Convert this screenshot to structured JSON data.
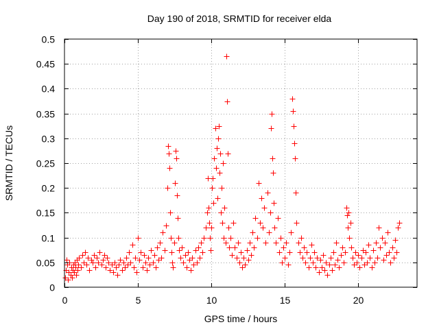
{
  "chart_data": {
    "type": "scatter",
    "title": "Day 190 of 2018, SRMTID for receiver elda",
    "xlabel": "GPS time / hours",
    "ylabel": "SRMTID / TECUs",
    "xlim": [
      0,
      24
    ],
    "ylim": [
      0,
      0.5
    ],
    "x_ticks": [
      0,
      5,
      10,
      15,
      20
    ],
    "x_tick_labels": [
      "0",
      "5",
      "10",
      "15",
      "20"
    ],
    "y_ticks": [
      0,
      0.05,
      0.1,
      0.15,
      0.2,
      0.25,
      0.3,
      0.35,
      0.4,
      0.45,
      0.5
    ],
    "y_tick_labels": [
      "0",
      "0.05",
      "0.1",
      "0.15",
      "0.2",
      "0.25",
      "0.3",
      "0.35",
      "0.4",
      "0.45",
      "0.5"
    ],
    "grid": true,
    "marker": "+",
    "color": "#ff0000",
    "series": [
      {
        "name": "SRMTID",
        "points": [
          [
            0.05,
            0.02
          ],
          [
            0.1,
            0.035
          ],
          [
            0.15,
            0.055
          ],
          [
            0.2,
            0.045
          ],
          [
            0.25,
            0.015
          ],
          [
            0.3,
            0.03
          ],
          [
            0.35,
            0.05
          ],
          [
            0.4,
            0.025
          ],
          [
            0.45,
            0.04
          ],
          [
            0.5,
            0.02
          ],
          [
            0.55,
            0.035
          ],
          [
            0.6,
            0.045
          ],
          [
            0.65,
            0.03
          ],
          [
            0.7,
            0.05
          ],
          [
            0.75,
            0.04
          ],
          [
            0.8,
            0.025
          ],
          [
            0.85,
            0.055
          ],
          [
            0.9,
            0.035
          ],
          [
            0.95,
            0.045
          ],
          [
            1.0,
            0.06
          ],
          [
            1.1,
            0.04
          ],
          [
            1.2,
            0.065
          ],
          [
            1.3,
            0.05
          ],
          [
            1.4,
            0.07
          ],
          [
            1.5,
            0.045
          ],
          [
            1.6,
            0.06
          ],
          [
            1.7,
            0.035
          ],
          [
            1.8,
            0.055
          ],
          [
            1.9,
            0.05
          ],
          [
            2.0,
            0.065
          ],
          [
            2.1,
            0.04
          ],
          [
            2.2,
            0.06
          ],
          [
            2.3,
            0.05
          ],
          [
            2.4,
            0.07
          ],
          [
            2.5,
            0.045
          ],
          [
            2.6,
            0.055
          ],
          [
            2.7,
            0.065
          ],
          [
            2.8,
            0.04
          ],
          [
            2.9,
            0.06
          ],
          [
            3.0,
            0.05
          ],
          [
            3.1,
            0.035
          ],
          [
            3.2,
            0.045
          ],
          [
            3.3,
            0.03
          ],
          [
            3.4,
            0.05
          ],
          [
            3.5,
            0.04
          ],
          [
            3.6,
            0.025
          ],
          [
            3.7,
            0.045
          ],
          [
            3.8,
            0.055
          ],
          [
            3.9,
            0.035
          ],
          [
            4.0,
            0.05
          ],
          [
            4.1,
            0.04
          ],
          [
            4.2,
            0.06
          ],
          [
            4.3,
            0.045
          ],
          [
            4.4,
            0.07
          ],
          [
            4.5,
            0.05
          ],
          [
            4.6,
            0.085
          ],
          [
            4.7,
            0.04
          ],
          [
            4.8,
            0.06
          ],
          [
            4.9,
            0.03
          ],
          [
            5.0,
            0.1
          ],
          [
            5.1,
            0.055
          ],
          [
            5.2,
            0.07
          ],
          [
            5.3,
            0.04
          ],
          [
            5.4,
            0.065
          ],
          [
            5.5,
            0.05
          ],
          [
            5.6,
            0.035
          ],
          [
            5.7,
            0.06
          ],
          [
            5.8,
            0.045
          ],
          [
            5.9,
            0.075
          ],
          [
            6.0,
            0.05
          ],
          [
            6.1,
            0.065
          ],
          [
            6.2,
            0.04
          ],
          [
            6.3,
            0.08
          ],
          [
            6.4,
            0.055
          ],
          [
            6.5,
            0.09
          ],
          [
            6.6,
            0.06
          ],
          [
            6.7,
            0.11
          ],
          [
            6.8,
            0.075
          ],
          [
            6.9,
            0.125
          ],
          [
            7.0,
            0.2
          ],
          [
            7.05,
            0.285
          ],
          [
            7.1,
            0.27
          ],
          [
            7.15,
            0.24
          ],
          [
            7.2,
            0.15
          ],
          [
            7.25,
            0.1
          ],
          [
            7.3,
            0.07
          ],
          [
            7.35,
            0.05
          ],
          [
            7.4,
            0.04
          ],
          [
            7.45,
            0.09
          ],
          [
            7.5,
            0.21
          ],
          [
            7.55,
            0.275
          ],
          [
            7.6,
            0.26
          ],
          [
            7.65,
            0.185
          ],
          [
            7.7,
            0.14
          ],
          [
            7.75,
            0.1
          ],
          [
            7.8,
            0.075
          ],
          [
            7.9,
            0.06
          ],
          [
            8.0,
            0.08
          ],
          [
            8.1,
            0.05
          ],
          [
            8.2,
            0.065
          ],
          [
            8.3,
            0.04
          ],
          [
            8.4,
            0.07
          ],
          [
            8.5,
            0.055
          ],
          [
            8.6,
            0.035
          ],
          [
            8.7,
            0.06
          ],
          [
            8.8,
            0.045
          ],
          [
            8.9,
            0.075
          ],
          [
            9.0,
            0.05
          ],
          [
            9.1,
            0.08
          ],
          [
            9.2,
            0.06
          ],
          [
            9.3,
            0.09
          ],
          [
            9.4,
            0.07
          ],
          [
            9.5,
            0.1
          ],
          [
            9.6,
            0.12
          ],
          [
            9.7,
            0.15
          ],
          [
            9.75,
            0.22
          ],
          [
            9.8,
            0.16
          ],
          [
            9.85,
            0.13
          ],
          [
            9.9,
            0.1
          ],
          [
            9.95,
            0.075
          ],
          [
            10.0,
            0.12
          ],
          [
            10.05,
            0.2
          ],
          [
            10.1,
            0.22
          ],
          [
            10.15,
            0.17
          ],
          [
            10.2,
            0.26
          ],
          [
            10.25,
            0.32
          ],
          [
            10.3,
            0.24
          ],
          [
            10.35,
            0.28
          ],
          [
            10.4,
            0.18
          ],
          [
            10.45,
            0.3
          ],
          [
            10.5,
            0.325
          ],
          [
            10.55,
            0.23
          ],
          [
            10.6,
            0.27
          ],
          [
            10.65,
            0.15
          ],
          [
            10.7,
            0.2
          ],
          [
            10.75,
            0.13
          ],
          [
            10.8,
            0.25
          ],
          [
            10.85,
            0.1
          ],
          [
            10.9,
            0.16
          ],
          [
            10.95,
            0.09
          ],
          [
            11.0,
            0.465
          ],
          [
            11.05,
            0.375
          ],
          [
            11.1,
            0.27
          ],
          [
            11.15,
            0.12
          ],
          [
            11.2,
            0.08
          ],
          [
            11.3,
            0.1
          ],
          [
            11.4,
            0.065
          ],
          [
            11.5,
            0.13
          ],
          [
            11.6,
            0.08
          ],
          [
            11.7,
            0.06
          ],
          [
            11.8,
            0.09
          ],
          [
            11.9,
            0.05
          ],
          [
            12.0,
            0.07
          ],
          [
            12.1,
            0.04
          ],
          [
            12.2,
            0.06
          ],
          [
            12.3,
            0.045
          ],
          [
            12.4,
            0.075
          ],
          [
            12.5,
            0.055
          ],
          [
            12.6,
            0.09
          ],
          [
            12.7,
            0.065
          ],
          [
            12.8,
            0.11
          ],
          [
            12.9,
            0.08
          ],
          [
            13.0,
            0.14
          ],
          [
            13.1,
            0.1
          ],
          [
            13.2,
            0.21
          ],
          [
            13.3,
            0.13
          ],
          [
            13.4,
            0.18
          ],
          [
            13.5,
            0.12
          ],
          [
            13.6,
            0.16
          ],
          [
            13.7,
            0.09
          ],
          [
            13.8,
            0.19
          ],
          [
            13.9,
            0.11
          ],
          [
            14.0,
            0.15
          ],
          [
            14.05,
            0.32
          ],
          [
            14.1,
            0.35
          ],
          [
            14.15,
            0.26
          ],
          [
            14.2,
            0.23
          ],
          [
            14.25,
            0.17
          ],
          [
            14.3,
            0.12
          ],
          [
            14.4,
            0.09
          ],
          [
            14.5,
            0.14
          ],
          [
            14.6,
            0.07
          ],
          [
            14.7,
            0.1
          ],
          [
            14.8,
            0.05
          ],
          [
            14.9,
            0.08
          ],
          [
            15.0,
            0.06
          ],
          [
            15.1,
            0.09
          ],
          [
            15.2,
            0.045
          ],
          [
            15.3,
            0.07
          ],
          [
            15.4,
            0.11
          ],
          [
            15.5,
            0.38
          ],
          [
            15.55,
            0.355
          ],
          [
            15.6,
            0.325
          ],
          [
            15.65,
            0.29
          ],
          [
            15.7,
            0.26
          ],
          [
            15.75,
            0.19
          ],
          [
            15.8,
            0.13
          ],
          [
            15.9,
            0.09
          ],
          [
            16.0,
            0.07
          ],
          [
            16.1,
            0.1
          ],
          [
            16.2,
            0.06
          ],
          [
            16.3,
            0.08
          ],
          [
            16.4,
            0.05
          ],
          [
            16.5,
            0.07
          ],
          [
            16.6,
            0.04
          ],
          [
            16.7,
            0.06
          ],
          [
            16.8,
            0.085
          ],
          [
            16.9,
            0.05
          ],
          [
            17.0,
            0.07
          ],
          [
            17.1,
            0.04
          ],
          [
            17.2,
            0.06
          ],
          [
            17.3,
            0.03
          ],
          [
            17.4,
            0.055
          ],
          [
            17.5,
            0.04
          ],
          [
            17.6,
            0.065
          ],
          [
            17.7,
            0.035
          ],
          [
            17.8,
            0.05
          ],
          [
            17.9,
            0.025
          ],
          [
            18.0,
            0.045
          ],
          [
            18.1,
            0.06
          ],
          [
            18.2,
            0.035
          ],
          [
            18.3,
            0.07
          ],
          [
            18.4,
            0.045
          ],
          [
            18.5,
            0.09
          ],
          [
            18.6,
            0.055
          ],
          [
            18.7,
            0.04
          ],
          [
            18.8,
            0.065
          ],
          [
            18.9,
            0.08
          ],
          [
            19.0,
            0.05
          ],
          [
            19.1,
            0.07
          ],
          [
            19.2,
            0.16
          ],
          [
            19.25,
            0.145
          ],
          [
            19.3,
            0.12
          ],
          [
            19.35,
            0.15
          ],
          [
            19.4,
            0.1
          ],
          [
            19.45,
            0.13
          ],
          [
            19.5,
            0.08
          ],
          [
            19.6,
            0.06
          ],
          [
            19.7,
            0.045
          ],
          [
            19.8,
            0.07
          ],
          [
            19.9,
            0.05
          ],
          [
            20.0,
            0.065
          ],
          [
            20.1,
            0.04
          ],
          [
            20.2,
            0.06
          ],
          [
            20.3,
            0.075
          ],
          [
            20.4,
            0.045
          ],
          [
            20.5,
            0.07
          ],
          [
            20.6,
            0.05
          ],
          [
            20.7,
            0.085
          ],
          [
            20.8,
            0.06
          ],
          [
            20.9,
            0.04
          ],
          [
            21.0,
            0.075
          ],
          [
            21.1,
            0.05
          ],
          [
            21.2,
            0.09
          ],
          [
            21.3,
            0.06
          ],
          [
            21.4,
            0.12
          ],
          [
            21.5,
            0.08
          ],
          [
            21.6,
            0.1
          ],
          [
            21.7,
            0.055
          ],
          [
            21.8,
            0.09
          ],
          [
            21.9,
            0.065
          ],
          [
            22.0,
            0.11
          ],
          [
            22.1,
            0.07
          ],
          [
            22.2,
            0.05
          ],
          [
            22.3,
            0.08
          ],
          [
            22.4,
            0.06
          ],
          [
            22.5,
            0.095
          ],
          [
            22.6,
            0.07
          ],
          [
            22.7,
            0.12
          ],
          [
            22.8,
            0.13
          ]
        ]
      }
    ]
  }
}
